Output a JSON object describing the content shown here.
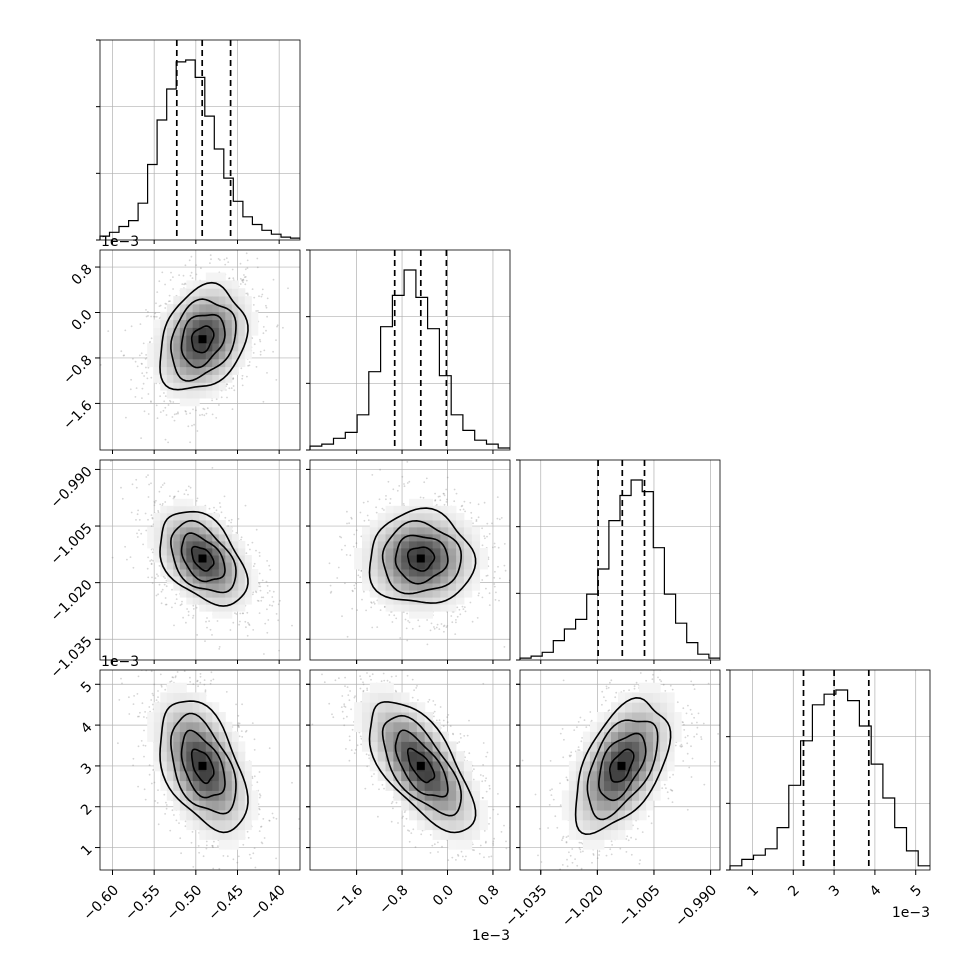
{
  "chart_data": {
    "type": "corner",
    "grid": true,
    "colors": {
      "line": "#000000",
      "grid": "#b0b0b0",
      "points": "#888888",
      "density_dark": "#3a3a3a"
    },
    "parameters": [
      {
        "index": 0,
        "range": [
          -0.615,
          -0.375
        ],
        "ticks": [
          -0.6,
          -0.55,
          -0.5,
          -0.45,
          -0.4
        ],
        "tick_labels": [
          "−0.60",
          "−0.55",
          "−0.50",
          "−0.45",
          "−0.40"
        ],
        "offset_label": "",
        "quantiles": [
          -0.5228,
          -0.4924,
          -0.4583
        ],
        "mean": -0.492,
        "sd": 0.026
      },
      {
        "index": 1,
        "range": [
          -2.42,
          1.1
        ],
        "ticks": [
          -1.6,
          -0.8,
          0.0,
          0.8
        ],
        "tick_labels": [
          "−1.6",
          "−0.8",
          "0.0",
          "0.8"
        ],
        "offset_label": "1e−3",
        "quantiles": [
          -0.93,
          -0.47,
          -0.02
        ],
        "mean": -0.47,
        "sd": 0.46
      },
      {
        "index": 2,
        "range": [
          -1.0405,
          -0.9875
        ],
        "ticks": [
          -1.035,
          -1.02,
          -1.005,
          -0.99
        ],
        "tick_labels": [
          "−1.035",
          "−1.020",
          "−1.005",
          "−0.990"
        ],
        "offset_label": "",
        "quantiles": [
          -1.0198,
          -1.0134,
          -1.0075
        ],
        "mean": -1.0136,
        "sd": 0.0062
      },
      {
        "index": 3,
        "range": [
          0.45,
          5.35
        ],
        "ticks": [
          1,
          2,
          3,
          4,
          5
        ],
        "tick_labels": [
          "1",
          "2",
          "3",
          "4",
          "5"
        ],
        "offset_label": "1e−3",
        "quantiles": [
          2.25,
          3.0,
          3.85
        ],
        "mean": 3.0,
        "sd": 0.8
      }
    ],
    "correlations": [
      {
        "x": 0,
        "y": 1,
        "rho": 0.25
      },
      {
        "x": 0,
        "y": 2,
        "rho": -0.42
      },
      {
        "x": 0,
        "y": 3,
        "rho": -0.45
      },
      {
        "x": 1,
        "y": 2,
        "rho": 0.0
      },
      {
        "x": 1,
        "y": 3,
        "rho": -0.65
      },
      {
        "x": 2,
        "y": 3,
        "rho": 0.5
      }
    ],
    "histograms": [
      {
        "param": 0,
        "counts": [
          2,
          4,
          7,
          10,
          19,
          39,
          62,
          78,
          92,
          93,
          84,
          64,
          47,
          32,
          20,
          12,
          8,
          5,
          3,
          1.5,
          1
        ]
      },
      {
        "param": 1,
        "counts": [
          2,
          3,
          6,
          9,
          18,
          40,
          63,
          79,
          92,
          78,
          62,
          38,
          18,
          10,
          5,
          3,
          1
        ]
      },
      {
        "param": 2,
        "counts": [
          1,
          2,
          4,
          10,
          16,
          21,
          34,
          47,
          72,
          85,
          93,
          87,
          58,
          34,
          19,
          9,
          3,
          1
        ]
      },
      {
        "param": 3,
        "counts": [
          2,
          5,
          7,
          10,
          20,
          40,
          61,
          78,
          83,
          85,
          80,
          68,
          50,
          34,
          20,
          9,
          2
        ]
      }
    ]
  }
}
